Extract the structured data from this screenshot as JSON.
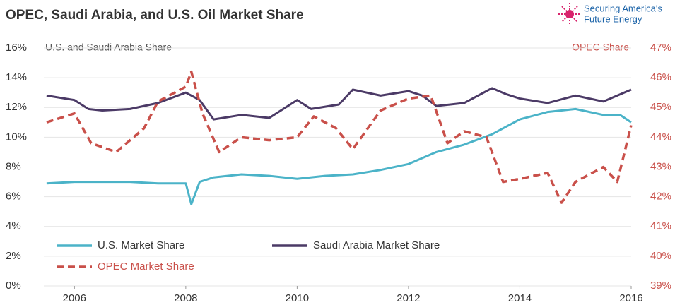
{
  "chart_data": {
    "type": "line",
    "title": "OPEC, Saudi Arabia, and U.S. Oil Market Share",
    "logo": [
      "Securing America's",
      "Future Energy"
    ],
    "y_label": "U.S. and Saudi Arabia Share",
    "y2_label": "OPEC Share",
    "xlim": [
      2005.45,
      2016
    ],
    "xticks": [
      2006,
      2008,
      2010,
      2012,
      2014,
      2016
    ],
    "ylim": [
      0,
      16
    ],
    "yticks": [
      {
        "value": 0,
        "label": "0%"
      },
      {
        "value": 2,
        "label": "2%"
      },
      {
        "value": 4,
        "label": "4%"
      },
      {
        "value": 6,
        "label": "6%"
      },
      {
        "value": 8,
        "label": "8%"
      },
      {
        "value": 10,
        "label": "10%"
      },
      {
        "value": 12,
        "label": "12%"
      },
      {
        "value": 14,
        "label": "14%"
      },
      {
        "value": 16,
        "label": "16%"
      }
    ],
    "y2lim": [
      39,
      47
    ],
    "y2ticks": [
      {
        "value": 39,
        "label": "39%"
      },
      {
        "value": 40,
        "label": "40%"
      },
      {
        "value": 41,
        "label": "41%"
      },
      {
        "value": 42,
        "label": "42%"
      },
      {
        "value": 43,
        "label": "43%"
      },
      {
        "value": 44,
        "label": "44%"
      },
      {
        "value": 45,
        "label": "45%"
      },
      {
        "value": 46,
        "label": "46%"
      },
      {
        "value": 47,
        "label": "47%"
      }
    ],
    "series": [
      {
        "name": "U.S. Market Share",
        "color": "#4bb3c8",
        "dashed": false,
        "x": [
          2005.5,
          2006,
          2006.5,
          2007,
          2007.5,
          2008,
          2008.1,
          2008.25,
          2008.5,
          2009,
          2009.5,
          2010,
          2010.5,
          2011,
          2011.5,
          2012,
          2012.5,
          2013,
          2013.5,
          2014,
          2014.5,
          2015,
          2015.5,
          2015.8,
          2016
        ],
        "values": [
          6.9,
          7.0,
          7.0,
          7.0,
          6.9,
          6.9,
          5.5,
          7.0,
          7.3,
          7.5,
          7.4,
          7.2,
          7.4,
          7.5,
          7.8,
          8.2,
          9.0,
          9.5,
          10.2,
          11.2,
          11.7,
          11.9,
          11.5,
          11.5,
          11.0
        ]
      },
      {
        "name": "Saudi Arabia Market Share",
        "color": "#4b3a66",
        "dashed": false,
        "x": [
          2005.5,
          2006,
          2006.25,
          2006.5,
          2007,
          2007.5,
          2008,
          2008.25,
          2008.5,
          2009,
          2009.5,
          2010,
          2010.25,
          2010.75,
          2011,
          2011.5,
          2012,
          2012.25,
          2012.5,
          2013,
          2013.5,
          2013.75,
          2014,
          2014.5,
          2015,
          2015.5,
          2016
        ],
        "values": [
          12.8,
          12.5,
          11.9,
          11.8,
          11.9,
          12.3,
          13.0,
          12.5,
          11.2,
          11.5,
          11.3,
          12.5,
          11.9,
          12.2,
          13.2,
          12.8,
          13.1,
          12.8,
          12.1,
          12.3,
          13.3,
          12.9,
          12.6,
          12.3,
          12.8,
          12.4,
          13.2
        ]
      },
      {
        "name": "OPEC Market Share",
        "color": "#c9504a",
        "dashed": true,
        "axis": "y2",
        "x": [
          2005.5,
          2006,
          2006.3,
          2006.75,
          2007.25,
          2007.5,
          2008,
          2008.1,
          2008.3,
          2008.6,
          2009,
          2009.5,
          2010,
          2010.3,
          2010.7,
          2011,
          2011.5,
          2012,
          2012.4,
          2012.7,
          2013,
          2013.4,
          2013.7,
          2014,
          2014.5,
          2014.75,
          2015,
          2015.5,
          2015.75,
          2016
        ],
        "values": [
          44.5,
          44.8,
          43.8,
          43.5,
          44.3,
          45.2,
          45.7,
          46.2,
          44.8,
          43.5,
          44.0,
          43.9,
          44.0,
          44.7,
          44.3,
          43.6,
          44.9,
          45.3,
          45.4,
          43.8,
          44.2,
          44.0,
          42.5,
          42.6,
          42.8,
          41.8,
          42.5,
          43.0,
          42.5,
          44.4
        ]
      }
    ]
  }
}
